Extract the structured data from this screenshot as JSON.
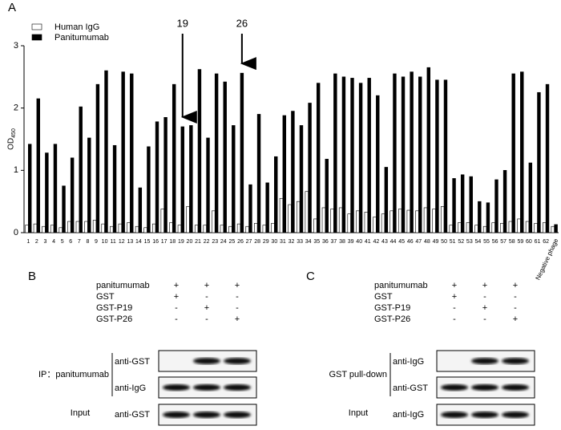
{
  "chart_data": {
    "type": "bar",
    "panel": "A",
    "categories": [
      "1",
      "2",
      "3",
      "4",
      "5",
      "6",
      "7",
      "8",
      "9",
      "10",
      "11",
      "12",
      "13",
      "14",
      "15",
      "16",
      "17",
      "18",
      "19",
      "20",
      "21",
      "22",
      "23",
      "24",
      "25",
      "26",
      "27",
      "28",
      "29",
      "30",
      "31",
      "32",
      "33",
      "34",
      "35",
      "36",
      "37",
      "38",
      "39",
      "40",
      "41",
      "42",
      "43",
      "44",
      "45",
      "46",
      "47",
      "48",
      "49",
      "50",
      "51",
      "52",
      "53",
      "54",
      "55",
      "56",
      "57",
      "58",
      "59",
      "60",
      "61",
      "62",
      "Negative phage"
    ],
    "series": [
      {
        "name": "Human IgG",
        "color": "#ffffff",
        "values": [
          0.12,
          0.14,
          0.1,
          0.12,
          0.08,
          0.18,
          0.18,
          0.18,
          0.2,
          0.14,
          0.1,
          0.14,
          0.16,
          0.1,
          0.08,
          0.14,
          0.38,
          0.16,
          0.12,
          0.42,
          0.12,
          0.12,
          0.35,
          0.12,
          0.1,
          0.14,
          0.1,
          0.15,
          0.12,
          0.15,
          0.55,
          0.45,
          0.5,
          0.66,
          0.22,
          0.4,
          0.38,
          0.4,
          0.3,
          0.35,
          0.33,
          0.25,
          0.3,
          0.35,
          0.38,
          0.36,
          0.35,
          0.4,
          0.38,
          0.42,
          0.12,
          0.16,
          0.16,
          0.12,
          0.1,
          0.16,
          0.15,
          0.18,
          0.22,
          0.18,
          0.15,
          0.16,
          0.1
        ]
      },
      {
        "name": "Panitumumab",
        "color": "#000000",
        "values": [
          1.42,
          2.15,
          1.28,
          1.42,
          0.75,
          1.2,
          2.02,
          1.52,
          2.38,
          2.6,
          1.4,
          2.58,
          2.55,
          0.72,
          1.38,
          1.78,
          1.85,
          2.38,
          1.7,
          1.72,
          2.62,
          1.52,
          2.55,
          2.42,
          1.72,
          2.56,
          0.77,
          1.9,
          0.8,
          1.22,
          1.88,
          1.95,
          1.72,
          2.08,
          2.4,
          1.18,
          2.55,
          2.5,
          2.48,
          2.4,
          2.48,
          2.2,
          1.05,
          2.55,
          2.5,
          2.58,
          2.5,
          2.65,
          2.45,
          2.45,
          0.87,
          0.93,
          0.9,
          0.5,
          0.48,
          0.85,
          1.0,
          2.55,
          2.58,
          1.12,
          2.25,
          2.38,
          0.13
        ]
      }
    ],
    "ylim": [
      0,
      3
    ],
    "yticks": [
      0,
      1,
      2,
      3
    ],
    "ylabel": "OD",
    "ylabel_sub": "450",
    "annotations": [
      "19",
      "26"
    ]
  },
  "panel_b": {
    "panel": "B",
    "rows": [
      {
        "label": "panitumumab",
        "signs": [
          "+",
          "+",
          "+"
        ]
      },
      {
        "label": "GST",
        "signs": [
          "+",
          "-",
          "-"
        ]
      },
      {
        "label": "GST-P19",
        "signs": [
          "-",
          "+",
          "-"
        ]
      },
      {
        "label": "GST-P26",
        "signs": [
          "-",
          "-",
          "+"
        ]
      }
    ],
    "group": "IP：panitumumab",
    "blots": [
      "anti-GST",
      "anti-IgG"
    ],
    "input_label": "Input",
    "input_blot": "anti-GST"
  },
  "panel_c": {
    "panel": "C",
    "rows": [
      {
        "label": "panitumumab",
        "signs": [
          "+",
          "+",
          "+"
        ]
      },
      {
        "label": "GST",
        "signs": [
          "+",
          "-",
          "-"
        ]
      },
      {
        "label": "GST-P19",
        "signs": [
          "-",
          "+",
          "-"
        ]
      },
      {
        "label": "GST-P26",
        "signs": [
          "-",
          "-",
          "+"
        ]
      }
    ],
    "group": "GST pull-down",
    "blots": [
      "anti-IgG",
      "anti-GST"
    ],
    "input_label": "Input",
    "input_blot": "anti-IgG"
  }
}
